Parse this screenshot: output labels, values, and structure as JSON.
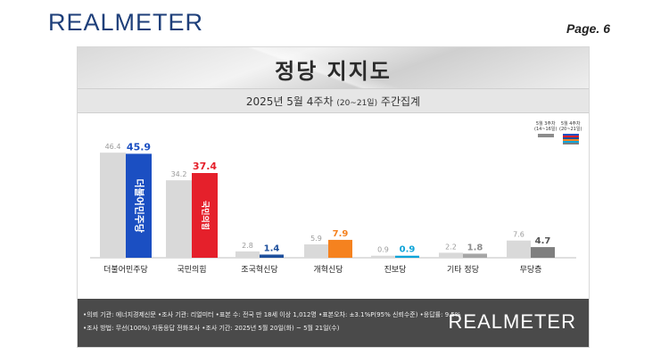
{
  "header": {
    "brand": "REALMETER",
    "page": "Page. 6"
  },
  "slide": {
    "title": "정당 지지도",
    "subtitle_main": "2025년 5월 4주차",
    "subtitle_range": "(20~21일)",
    "subtitle_tail": "주간집계"
  },
  "legend": {
    "prev_label1": "5월 3주차",
    "prev_label2": "(14~16일)",
    "curr_label1": "5월 4주차",
    "curr_label2": "(20~21일)"
  },
  "colors": {
    "previous": "#d9d9d9",
    "democratic": "#1b4fc2",
    "ppp": "#e5202b",
    "rebuilding": "#1d4f9c",
    "reform": "#f5821f",
    "progressive": "#0ea4d8",
    "other": "#a6a6a6",
    "independent": "#7f7f7f"
  },
  "chart_data": {
    "type": "bar",
    "categories": [
      "더불어민주당",
      "국민의힘",
      "조국혁신당",
      "개혁신당",
      "진보당",
      "기타 정당",
      "무당층"
    ],
    "series": [
      {
        "name": "5월 3주차 (14~16일)",
        "values": [
          46.4,
          34.2,
          2.8,
          5.9,
          0.9,
          2.2,
          7.6
        ]
      },
      {
        "name": "5월 4주차 (20~21일)",
        "values": [
          45.9,
          37.4,
          1.4,
          7.9,
          0.9,
          1.8,
          4.7
        ]
      }
    ],
    "bar_logos": [
      "더불어민주당",
      "국민의힘"
    ],
    "ylim": [
      0,
      50
    ]
  },
  "footer": {
    "line1": "•의뢰 기관: 에너지경제신문 •조사 기관: 리얼미터 •표본 수: 전국 만 18세 이상 1,012명 •표본오차: ±3.1%P(95% 신뢰수준) •응답률: 9.5%",
    "line2": "•조사 방법: 무선(100%) 자동응답 전화조사 •조사 기간: 2025년 5월 20일(화) ~ 5월 21일(수)",
    "logo": "REALMETER"
  }
}
